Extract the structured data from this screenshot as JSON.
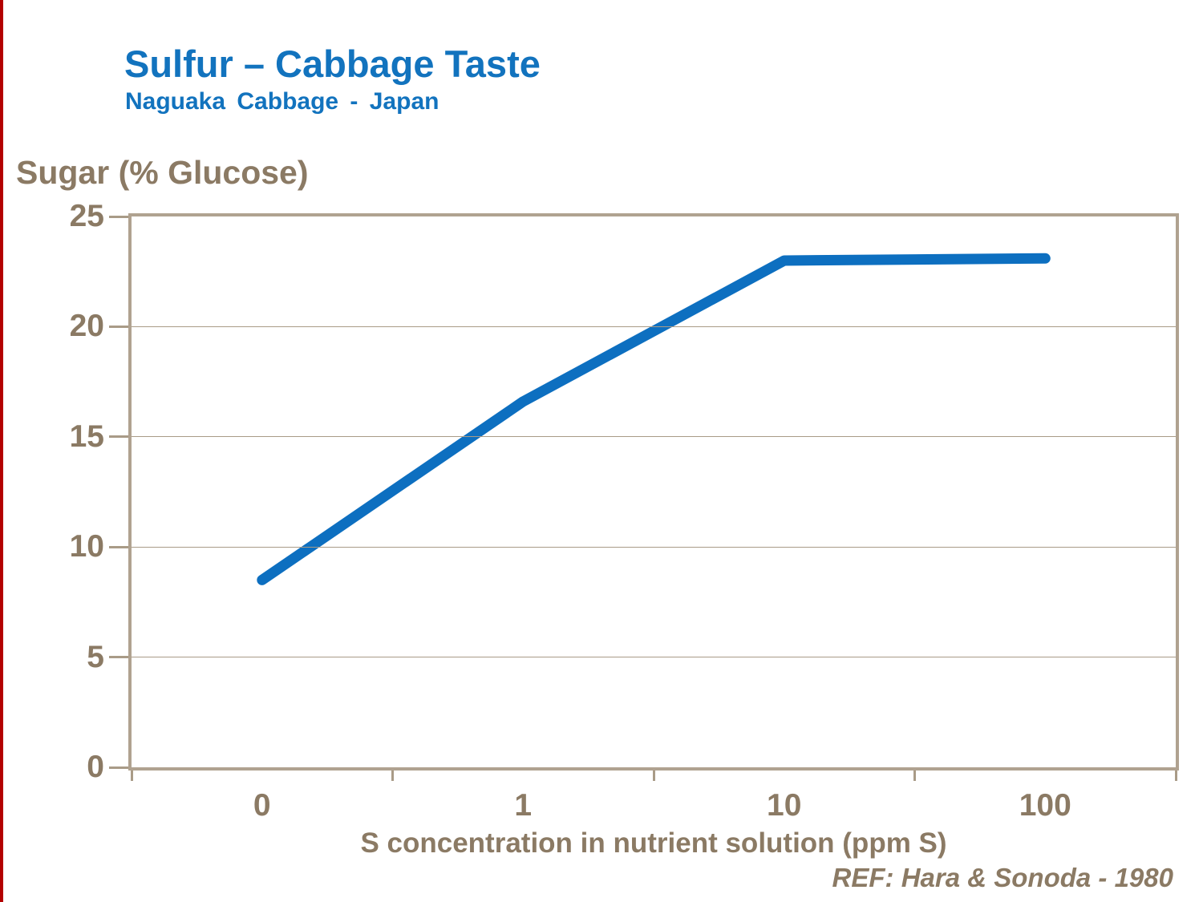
{
  "slide": {
    "title": "Sulfur – Cabbage Taste",
    "subtitle": "Naguaka Cabbage - Japan",
    "reference": "REF: Hara & Sonoda - 1980",
    "colors": {
      "title_blue": "#1273be",
      "line_blue": "#0d6fc0",
      "text_brown": "#8b7a64",
      "axis_border_tan": "#b0a290",
      "gridline_tan": "#a99b87",
      "left_edge_accent_red": "#b30000"
    }
  },
  "chart_data": {
    "type": "line",
    "title": "Sulfur – Cabbage Taste",
    "subtitle": "Naguaka Cabbage - Japan",
    "categories": [
      "0",
      "1",
      "10",
      "100"
    ],
    "series": [
      {
        "name": "Sugar (% Glucose)",
        "values": [
          8.5,
          16.6,
          23,
          23.1
        ]
      }
    ],
    "xlabel": "S concentration in nutrient solution (ppm S)",
    "ylabel": "Sugar (% Glucose)",
    "ylim": [
      0,
      25
    ],
    "yticks": [
      0,
      5,
      10,
      15,
      20,
      25
    ],
    "x_axis_type": "category (log-spaced S concentrations)",
    "grid": "horizontal",
    "legend": "none",
    "line_width": 13,
    "annotation": "REF: Hara & Sonoda - 1980"
  }
}
